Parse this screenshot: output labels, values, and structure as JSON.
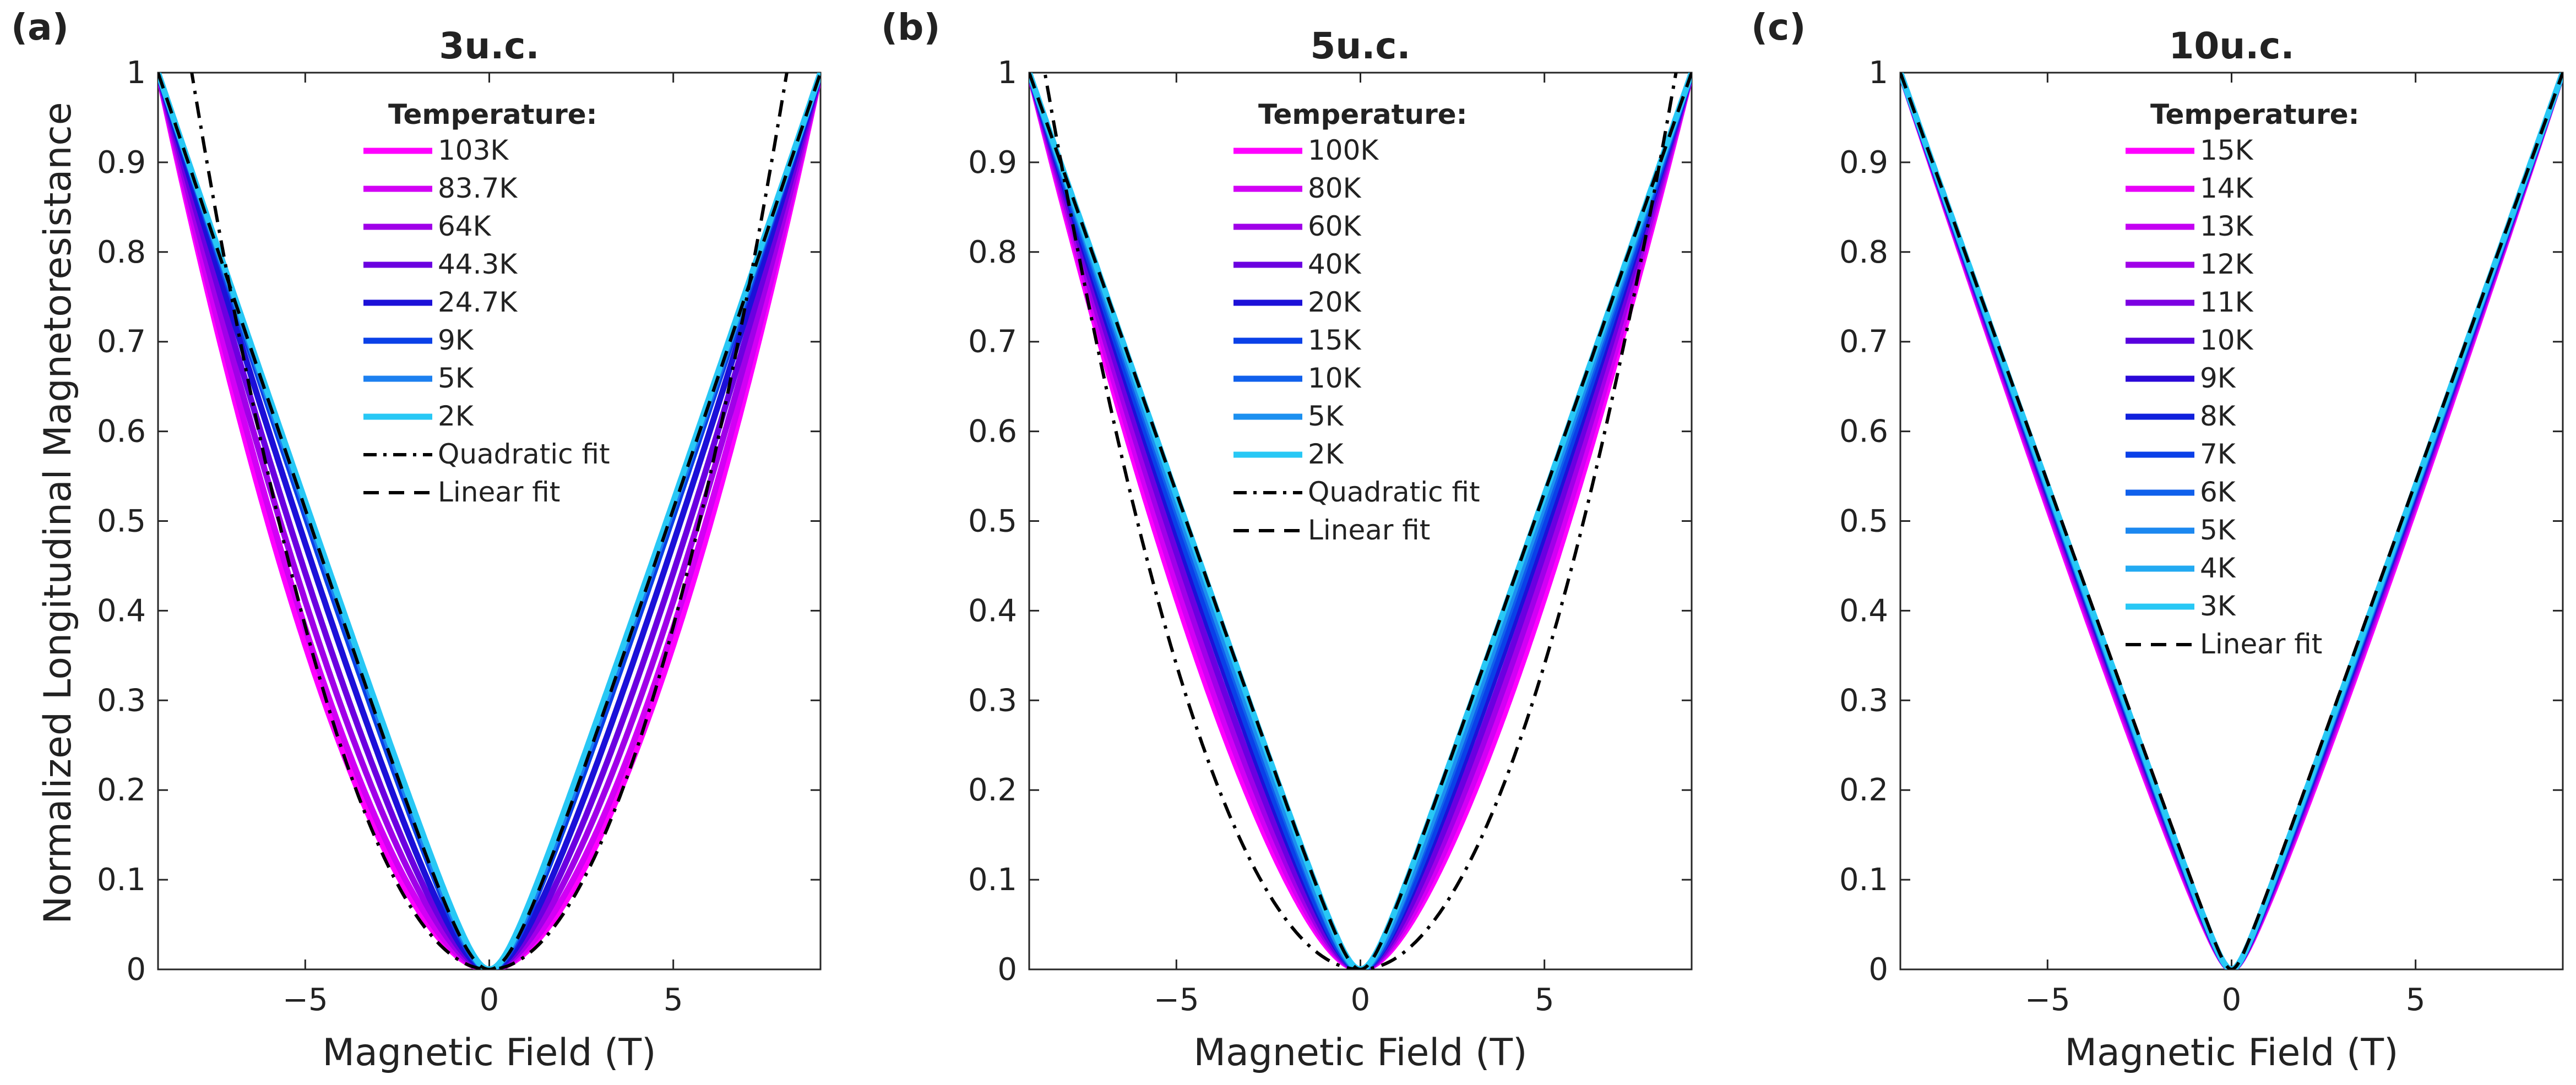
{
  "figure": {
    "ylabel": "Normalized Longitudinal Magnetoresistance",
    "xlabel": "Magnetic Field (T)"
  },
  "chart_data": [
    {
      "type": "line",
      "panel": "(a)",
      "title": "3u.c.",
      "xlabel": "Magnetic Field (T)",
      "ylabel": "Normalized Longitudinal Magnetoresistance",
      "xlim": [
        -9,
        9
      ],
      "ylim": [
        0,
        1
      ],
      "xticks": [
        -5,
        0,
        5
      ],
      "xtick_labels": [
        "−5",
        "0",
        "5"
      ],
      "yticks": [
        0,
        0.1,
        0.2,
        0.3,
        0.4,
        0.5,
        0.6,
        0.7,
        0.8,
        0.9,
        1
      ],
      "ytick_labels": [
        "0",
        "0.1",
        "0.2",
        "0.3",
        "0.4",
        "0.5",
        "0.6",
        "0.7",
        "0.8",
        "0.9",
        "1"
      ],
      "legend_title": "Temperature:",
      "legend_position": "top-center",
      "series": [
        {
          "name": "103K",
          "color": "#ff00ff",
          "curve": {
            "model": "mix",
            "alpha": 1.7,
            "width": 1.0
          }
        },
        {
          "name": "83.7K",
          "color": "#d200f5",
          "curve": {
            "model": "mix",
            "alpha": 1.6,
            "width": 1.0
          }
        },
        {
          "name": "64K",
          "color": "#a000e8",
          "curve": {
            "model": "mix",
            "alpha": 1.45,
            "width": 1.0
          }
        },
        {
          "name": "44.3K",
          "color": "#6b00e0",
          "curve": {
            "model": "mix",
            "alpha": 1.3,
            "width": 1.0
          }
        },
        {
          "name": "24.7K",
          "color": "#1c10d8",
          "curve": {
            "model": "mix",
            "alpha": 1.15,
            "width": 1.0
          }
        },
        {
          "name": "9K",
          "color": "#0a40e8",
          "curve": {
            "model": "mix",
            "alpha": 1.05,
            "width": 0.8
          }
        },
        {
          "name": "5K",
          "color": "#1c80f0",
          "curve": {
            "model": "mix",
            "alpha": 1.03,
            "width": 0.7
          }
        },
        {
          "name": "2K",
          "color": "#28c8f5",
          "curve": {
            "model": "mix",
            "alpha": 1.02,
            "width": 0.6
          }
        }
      ],
      "fits": [
        {
          "name": "Quadratic fit",
          "style": "dashdot",
          "curve": {
            "model": "quadratic",
            "coef": 0.0153
          }
        },
        {
          "name": "Linear fit",
          "style": "dashed",
          "curve": {
            "model": "linear_rounded",
            "width": 0.9
          }
        }
      ]
    },
    {
      "type": "line",
      "panel": "(b)",
      "title": "5u.c.",
      "xlabel": "Magnetic Field (T)",
      "xlim": [
        -9,
        9
      ],
      "ylim": [
        0,
        1
      ],
      "xticks": [
        -5,
        0,
        5
      ],
      "xtick_labels": [
        "−5",
        "0",
        "5"
      ],
      "yticks": [
        0,
        0.1,
        0.2,
        0.3,
        0.4,
        0.5,
        0.6,
        0.7,
        0.8,
        0.9,
        1
      ],
      "ytick_labels": [
        "0",
        "0.1",
        "0.2",
        "0.3",
        "0.4",
        "0.5",
        "0.6",
        "0.7",
        "0.8",
        "0.9",
        "1"
      ],
      "legend_title": "Temperature:",
      "legend_position": "top-center",
      "series": [
        {
          "name": "100K",
          "color": "#ff00ff",
          "curve": {
            "model": "mix",
            "alpha": 1.45,
            "width": 0.8
          }
        },
        {
          "name": "80K",
          "color": "#d200f5",
          "curve": {
            "model": "mix",
            "alpha": 1.38,
            "width": 0.8
          }
        },
        {
          "name": "60K",
          "color": "#a000e8",
          "curve": {
            "model": "mix",
            "alpha": 1.3,
            "width": 0.8
          }
        },
        {
          "name": "40K",
          "color": "#6b00e0",
          "curve": {
            "model": "mix",
            "alpha": 1.22,
            "width": 0.8
          }
        },
        {
          "name": "20K",
          "color": "#1c10d8",
          "curve": {
            "model": "mix",
            "alpha": 1.15,
            "width": 0.7
          }
        },
        {
          "name": "15K",
          "color": "#0a40e8",
          "curve": {
            "model": "mix",
            "alpha": 1.1,
            "width": 0.7
          }
        },
        {
          "name": "10K",
          "color": "#1060ec",
          "curve": {
            "model": "mix",
            "alpha": 1.06,
            "width": 0.6
          }
        },
        {
          "name": "5K",
          "color": "#1c90f0",
          "curve": {
            "model": "mix",
            "alpha": 1.03,
            "width": 0.6
          }
        },
        {
          "name": "2K",
          "color": "#28c8f5",
          "curve": {
            "model": "mix",
            "alpha": 1.01,
            "width": 0.5
          }
        }
      ],
      "fits": [
        {
          "name": "Quadratic fit",
          "style": "dashdot",
          "curve": {
            "model": "quadratic",
            "coef": 0.0136
          }
        },
        {
          "name": "Linear fit",
          "style": "dashed",
          "curve": {
            "model": "linear_rounded",
            "width": 0.5
          }
        }
      ]
    },
    {
      "type": "line",
      "panel": "(c)",
      "title": "10u.c.",
      "xlabel": "Magnetic Field (T)",
      "xlim": [
        -9,
        9
      ],
      "ylim": [
        0,
        1
      ],
      "xticks": [
        -5,
        0,
        5
      ],
      "xtick_labels": [
        "−5",
        "0",
        "5"
      ],
      "yticks": [
        0,
        0.1,
        0.2,
        0.3,
        0.4,
        0.5,
        0.6,
        0.7,
        0.8,
        0.9,
        1
      ],
      "ytick_labels": [
        "0",
        "0.1",
        "0.2",
        "0.3",
        "0.4",
        "0.5",
        "0.6",
        "0.7",
        "0.8",
        "0.9",
        "1"
      ],
      "legend_title": "Temperature:",
      "legend_position": "top-center",
      "series": [
        {
          "name": "15K",
          "color": "#ff00ff",
          "curve": {
            "model": "mix",
            "alpha": 1.09,
            "width": 0.3
          }
        },
        {
          "name": "14K",
          "color": "#e800f8",
          "curve": {
            "model": "mix",
            "alpha": 1.08,
            "width": 0.3
          }
        },
        {
          "name": "13K",
          "color": "#c400f2",
          "curve": {
            "model": "mix",
            "alpha": 1.07,
            "width": 0.3
          }
        },
        {
          "name": "12K",
          "color": "#a000e8",
          "curve": {
            "model": "mix",
            "alpha": 1.06,
            "width": 0.3
          }
        },
        {
          "name": "11K",
          "color": "#7c00e2",
          "curve": {
            "model": "mix",
            "alpha": 1.05,
            "width": 0.3
          }
        },
        {
          "name": "10K",
          "color": "#5800de",
          "curve": {
            "model": "mix",
            "alpha": 1.04,
            "width": 0.3
          }
        },
        {
          "name": "9K",
          "color": "#2a08d8",
          "curve": {
            "model": "mix",
            "alpha": 1.035,
            "width": 0.3
          }
        },
        {
          "name": "8K",
          "color": "#1020dc",
          "curve": {
            "model": "mix",
            "alpha": 1.03,
            "width": 0.3
          }
        },
        {
          "name": "7K",
          "color": "#0a40e8",
          "curve": {
            "model": "mix",
            "alpha": 1.025,
            "width": 0.3
          }
        },
        {
          "name": "6K",
          "color": "#1060ec",
          "curve": {
            "model": "mix",
            "alpha": 1.02,
            "width": 0.3
          }
        },
        {
          "name": "5K",
          "color": "#1c88f0",
          "curve": {
            "model": "mix",
            "alpha": 1.015,
            "width": 0.3
          }
        },
        {
          "name": "4K",
          "color": "#22aaf2",
          "curve": {
            "model": "mix",
            "alpha": 1.01,
            "width": 0.3
          }
        },
        {
          "name": "3K",
          "color": "#28c8f5",
          "curve": {
            "model": "mix",
            "alpha": 1.005,
            "width": 0.3
          }
        }
      ],
      "fits": [
        {
          "name": "Linear fit",
          "style": "dashed",
          "curve": {
            "model": "linear_rounded",
            "width": 0.25
          }
        }
      ]
    }
  ]
}
